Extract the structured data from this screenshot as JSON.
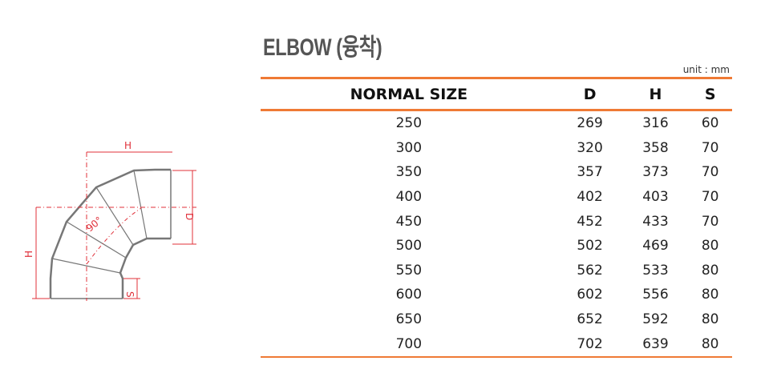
{
  "title": "ELBOW (융착)",
  "unit": "unit : mm",
  "columns": [
    "NORMAL SIZE",
    "D",
    "H",
    "S"
  ],
  "rows": [
    [
      "250",
      "269",
      "316",
      "60"
    ],
    [
      "300",
      "320",
      "358",
      "70"
    ],
    [
      "350",
      "357",
      "373",
      "70"
    ],
    [
      "400",
      "402",
      "403",
      "70"
    ],
    [
      "450",
      "452",
      "433",
      "70"
    ],
    [
      "500",
      "502",
      "469",
      "80"
    ],
    [
      "550",
      "562",
      "533",
      "80"
    ],
    [
      "600",
      "602",
      "556",
      "80"
    ],
    [
      "650",
      "652",
      "592",
      "80"
    ],
    [
      "700",
      "702",
      "639",
      "80"
    ]
  ],
  "drawing": {
    "label_h_top": "H",
    "label_h_left": "H",
    "label_d": "D",
    "label_s": "S",
    "label_angle": "90°"
  },
  "colors": {
    "accent": "#ef7a35",
    "dimension": "#e0303a"
  }
}
